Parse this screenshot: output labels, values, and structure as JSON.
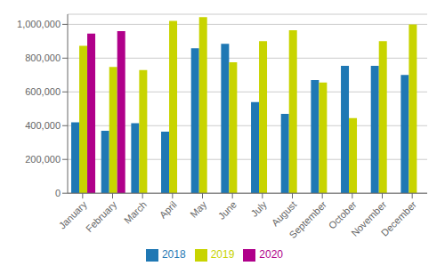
{
  "chart_data": {
    "type": "bar",
    "categories": [
      "January",
      "February",
      "March",
      "April",
      "May",
      "June",
      "July",
      "August",
      "September",
      "October",
      "November",
      "December"
    ],
    "series": [
      {
        "name": "2018",
        "color": "#1f78b4",
        "values": [
          420000,
          370000,
          415000,
          365000,
          858000,
          885000,
          540000,
          470000,
          670000,
          755000,
          755000,
          700000
        ]
      },
      {
        "name": "2019",
        "color": "#c8d400",
        "values": [
          873000,
          748000,
          730000,
          1020000,
          1043000,
          775000,
          900000,
          965000,
          655000,
          445000,
          900000,
          1000000
        ]
      },
      {
        "name": "2020",
        "color": "#b0008a",
        "values": [
          945000,
          960000,
          null,
          null,
          null,
          null,
          null,
          null,
          null,
          null,
          null,
          null
        ]
      }
    ],
    "ylim": [
      0,
      1060000
    ],
    "yticks": [
      0,
      {
        "value": 200000,
        "label": "200,000"
      },
      {
        "value": 400000,
        "label": "400,000"
      },
      {
        "value": 600000,
        "label": "600,000"
      },
      {
        "value": 800000,
        "label": "800,000"
      },
      {
        "value": 1000000,
        "label": "1,000,000"
      }
    ],
    "grid": true,
    "legend": "bottom"
  }
}
